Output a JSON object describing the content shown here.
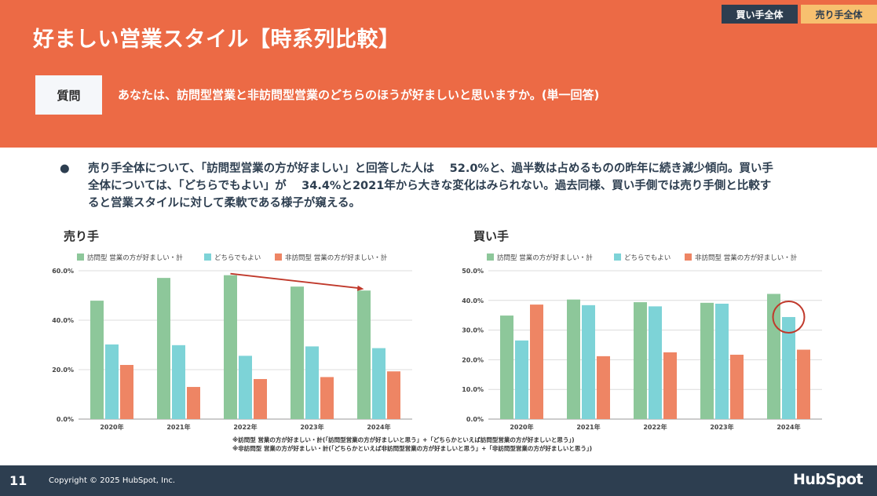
{
  "header": {
    "title": "好ましい営業スタイル【時系列比較】",
    "tags": [
      "買い手全体",
      "売り手全体"
    ],
    "question_label": "質問",
    "question_text": "あなたは、訪問型営業と非訪問型営業のどちらのほうが好ましいと思いますか。(単一回答)"
  },
  "summary": {
    "bullet": "●",
    "text": "売り手全体について、「訪問型営業の方が好ましい」と回答した人は　 52.0%と、過半数は占めるものの昨年に続き減少傾向。買い手全体については、「どちらでもよい」が　 34.4%と2021年から大きな変化はみられない。過去同様、買い手側では売り手側と比較すると営業スタイルに対して柔軟である様子が窺える。"
  },
  "colors": {
    "header_bg": "#ec6a45",
    "visit": "#8dc79a",
    "either": "#7dd3d7",
    "nonvisit": "#ee8564",
    "annotation": "#c0392b",
    "footer_bg": "#2d3e50"
  },
  "chart_data": [
    {
      "type": "bar",
      "title": "売り手",
      "categories": [
        "2020年",
        "2021年",
        "2022年",
        "2023年",
        "2024年"
      ],
      "series": [
        {
          "name": "訪問型 営業の方が好ましい・計",
          "values": [
            47.9,
            57.1,
            58.2,
            53.6,
            52.0
          ]
        },
        {
          "name": "どちらでもよい",
          "values": [
            30.2,
            29.9,
            25.6,
            29.4,
            28.7
          ]
        },
        {
          "name": "非訪問型 営業の方が好ましい・計",
          "values": [
            21.9,
            13.0,
            16.2,
            17.0,
            19.3
          ]
        }
      ],
      "ylim": [
        0,
        60
      ],
      "yticks": [
        0,
        20,
        40,
        60
      ],
      "ytick_labels": [
        "0.0%",
        "20.0%",
        "40.0%",
        "60.0%"
      ],
      "legend": "top",
      "annotation": {
        "type": "arrow",
        "from": "2022年",
        "to": "2024年",
        "series": 0
      }
    },
    {
      "type": "bar",
      "title": "買い手",
      "categories": [
        "2020年",
        "2021年",
        "2022年",
        "2023年",
        "2024年"
      ],
      "series": [
        {
          "name": "訪問型 営業の方が好ましい・計",
          "values": [
            34.9,
            40.3,
            39.4,
            39.2,
            42.2
          ]
        },
        {
          "name": "どちらでもよい",
          "values": [
            26.5,
            38.4,
            38.0,
            38.9,
            34.4
          ]
        },
        {
          "name": "非訪問型 営業の方が好ましい・計",
          "values": [
            38.6,
            21.2,
            22.5,
            21.7,
            23.4
          ]
        }
      ],
      "ylim": [
        0,
        50
      ],
      "yticks": [
        0,
        10,
        20,
        30,
        40,
        50
      ],
      "ytick_labels": [
        "0.0%",
        "10.0%",
        "20.0%",
        "30.0%",
        "40.0%",
        "50.0%"
      ],
      "legend": "top",
      "annotation": {
        "type": "circle",
        "category": "2024年",
        "series": 1
      }
    }
  ],
  "notes": [
    "※訪問型 営業の方が好ましい・計(「訪問型営業の方が好ましいと思う」+「どちらかといえば訪問型営業の方が好ましいと思う」)",
    "※非訪問型 営業の方が好ましい・計(「どちらかといえば非訪問型営業の方が好ましいと思う」+「非訪問型営業の方が好ましいと思う」)"
  ],
  "footer": {
    "page": "11",
    "copyright": "Copyright © 2025 HubSpot, Inc.",
    "logo": "HubSpot"
  }
}
